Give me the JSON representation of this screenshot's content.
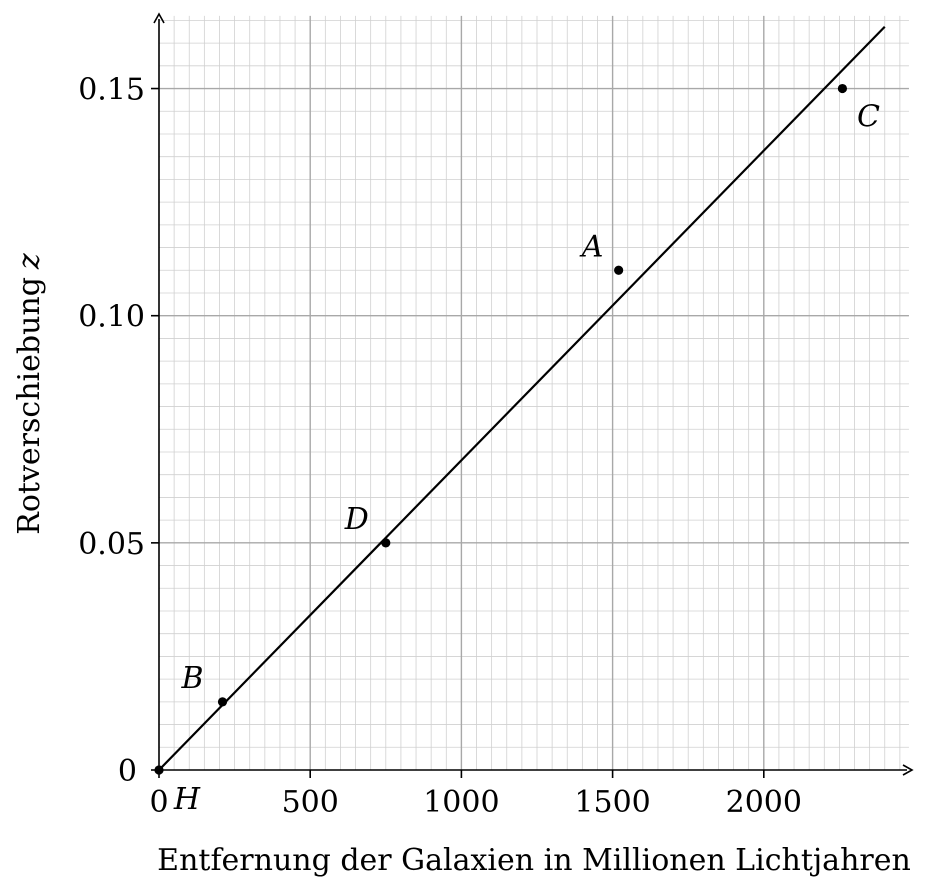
{
  "chart_data": {
    "type": "scatter",
    "xlabel": "Entfernung der Galaxien in Millionen Lichtjahren",
    "ylabel": "Rotverschiebung",
    "ylabel_symbol": "z",
    "xlim": [
      0,
      2480
    ],
    "ylim": [
      0,
      0.166
    ],
    "x_ticks": [
      0,
      500,
      1000,
      1500,
      2000
    ],
    "x_tick_labels": [
      "0",
      "500",
      "1000",
      "1500",
      "2000"
    ],
    "y_ticks": [
      0.05,
      0.1,
      0.15
    ],
    "y_tick_labels": [
      "0.05",
      "0.10",
      "0.15"
    ],
    "y_origin_label": "0",
    "grid": true,
    "grid_major_x": 500,
    "grid_major_y": 0.05,
    "grid_minor_x": 50,
    "grid_minor_y": 0.005,
    "points": [
      {
        "label": "H",
        "x": 0,
        "y": 0
      },
      {
        "label": "B",
        "x": 210,
        "y": 0.015
      },
      {
        "label": "D",
        "x": 750,
        "y": 0.05
      },
      {
        "label": "A",
        "x": 1520,
        "y": 0.11
      },
      {
        "label": "C",
        "x": 2260,
        "y": 0.15
      }
    ],
    "fit_line": {
      "x0": 0,
      "y0": 0,
      "x1": 2400,
      "y1": 0.1636
    }
  }
}
